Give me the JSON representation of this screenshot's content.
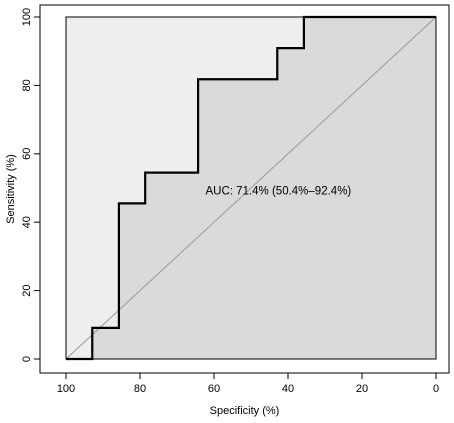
{
  "chart_data": {
    "type": "line",
    "title": "",
    "xlabel": "Specificity (%)",
    "ylabel": "Sensitivity (%)",
    "xlim": [
      100,
      0
    ],
    "ylim": [
      0,
      100
    ],
    "x_reversed": true,
    "xticks": [
      "100",
      "80",
      "60",
      "40",
      "20",
      "0"
    ],
    "yticks": [
      "0",
      "20",
      "40",
      "60",
      "80",
      "100"
    ],
    "grid": false,
    "legend": "none",
    "series": [
      {
        "x": [
          100,
          92.9,
          92.9,
          85.7,
          85.7,
          78.6,
          78.6,
          64.3,
          64.3,
          42.9,
          42.9,
          35.7,
          35.7,
          0
        ],
        "y": [
          0,
          0,
          9.1,
          9.1,
          45.5,
          45.5,
          54.5,
          54.5,
          81.8,
          81.8,
          90.9,
          90.9,
          100,
          100
        ]
      }
    ],
    "reference_line": {
      "x": [
        100,
        0
      ],
      "y": [
        0,
        100
      ]
    },
    "annotation": "AUC: 71.4% (50.4%–92.4%)",
    "annotation_position": {
      "x": 45,
      "y": 49
    },
    "colors": {
      "roc_line": "#000000",
      "auc_fill": "#dadada",
      "upper_fill": "#eeeeee",
      "diagonal": "#9a9a9a",
      "frame": "#000000"
    }
  }
}
